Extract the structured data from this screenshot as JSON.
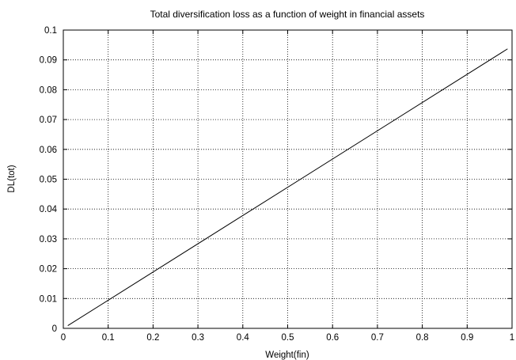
{
  "chart_data": {
    "type": "line",
    "title": "Total diversification loss as a function of weight in financial assets",
    "xlabel": "Weight(fin)",
    "ylabel": "DL(tot)",
    "xlim": [
      0,
      1
    ],
    "ylim": [
      0,
      0.1
    ],
    "xticks": [
      0,
      0.1,
      0.2,
      0.3,
      0.4,
      0.5,
      0.6,
      0.7,
      0.8,
      0.9,
      1
    ],
    "xtick_labels": [
      "0",
      "0.1",
      "0.2",
      "0.3",
      "0.4",
      "0.5",
      "0.6",
      "0.7",
      "0.8",
      "0.9",
      "1"
    ],
    "yticks": [
      0,
      0.01,
      0.02,
      0.03,
      0.04,
      0.05,
      0.06,
      0.07,
      0.08,
      0.09,
      0.1
    ],
    "ytick_labels": [
      "0",
      "0.01",
      "0.02",
      "0.03",
      "0.04",
      "0.05",
      "0.06",
      "0.07",
      "0.08",
      "0.09",
      "0.1"
    ],
    "grid": true,
    "series": [
      {
        "color": "#000000",
        "x": [
          0.01,
          0.99
        ],
        "y": [
          0.0009,
          0.0937
        ]
      }
    ]
  }
}
